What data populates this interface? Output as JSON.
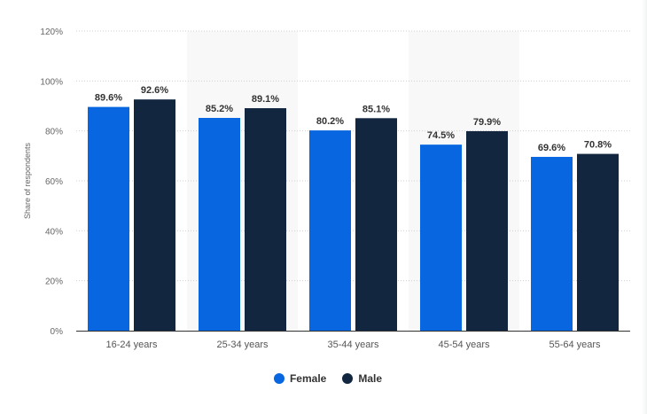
{
  "chart_data": {
    "type": "bar",
    "categories": [
      "16-24 years",
      "25-34 years",
      "35-44 years",
      "45-54 years",
      "55-64 years"
    ],
    "series": [
      {
        "name": "Female",
        "values": [
          89.6,
          85.2,
          80.2,
          74.5,
          69.6
        ],
        "color": "#0766e0",
        "labels": [
          "89.6%",
          "85.2%",
          "80.2%",
          "74.5%",
          "69.6%"
        ]
      },
      {
        "name": "Male",
        "values": [
          92.6,
          89.1,
          85.1,
          79.9,
          70.8
        ],
        "color": "#122640",
        "labels": [
          "92.6%",
          "89.1%",
          "85.1%",
          "79.9%",
          "70.8%"
        ]
      }
    ],
    "ylabel": "Share of respondents",
    "xlabel": "",
    "ylim": [
      0,
      120
    ],
    "yticks": [
      "0%",
      "20%",
      "40%",
      "60%",
      "80%",
      "100%",
      "120%"
    ],
    "grid": true,
    "legend": "bottom"
  }
}
